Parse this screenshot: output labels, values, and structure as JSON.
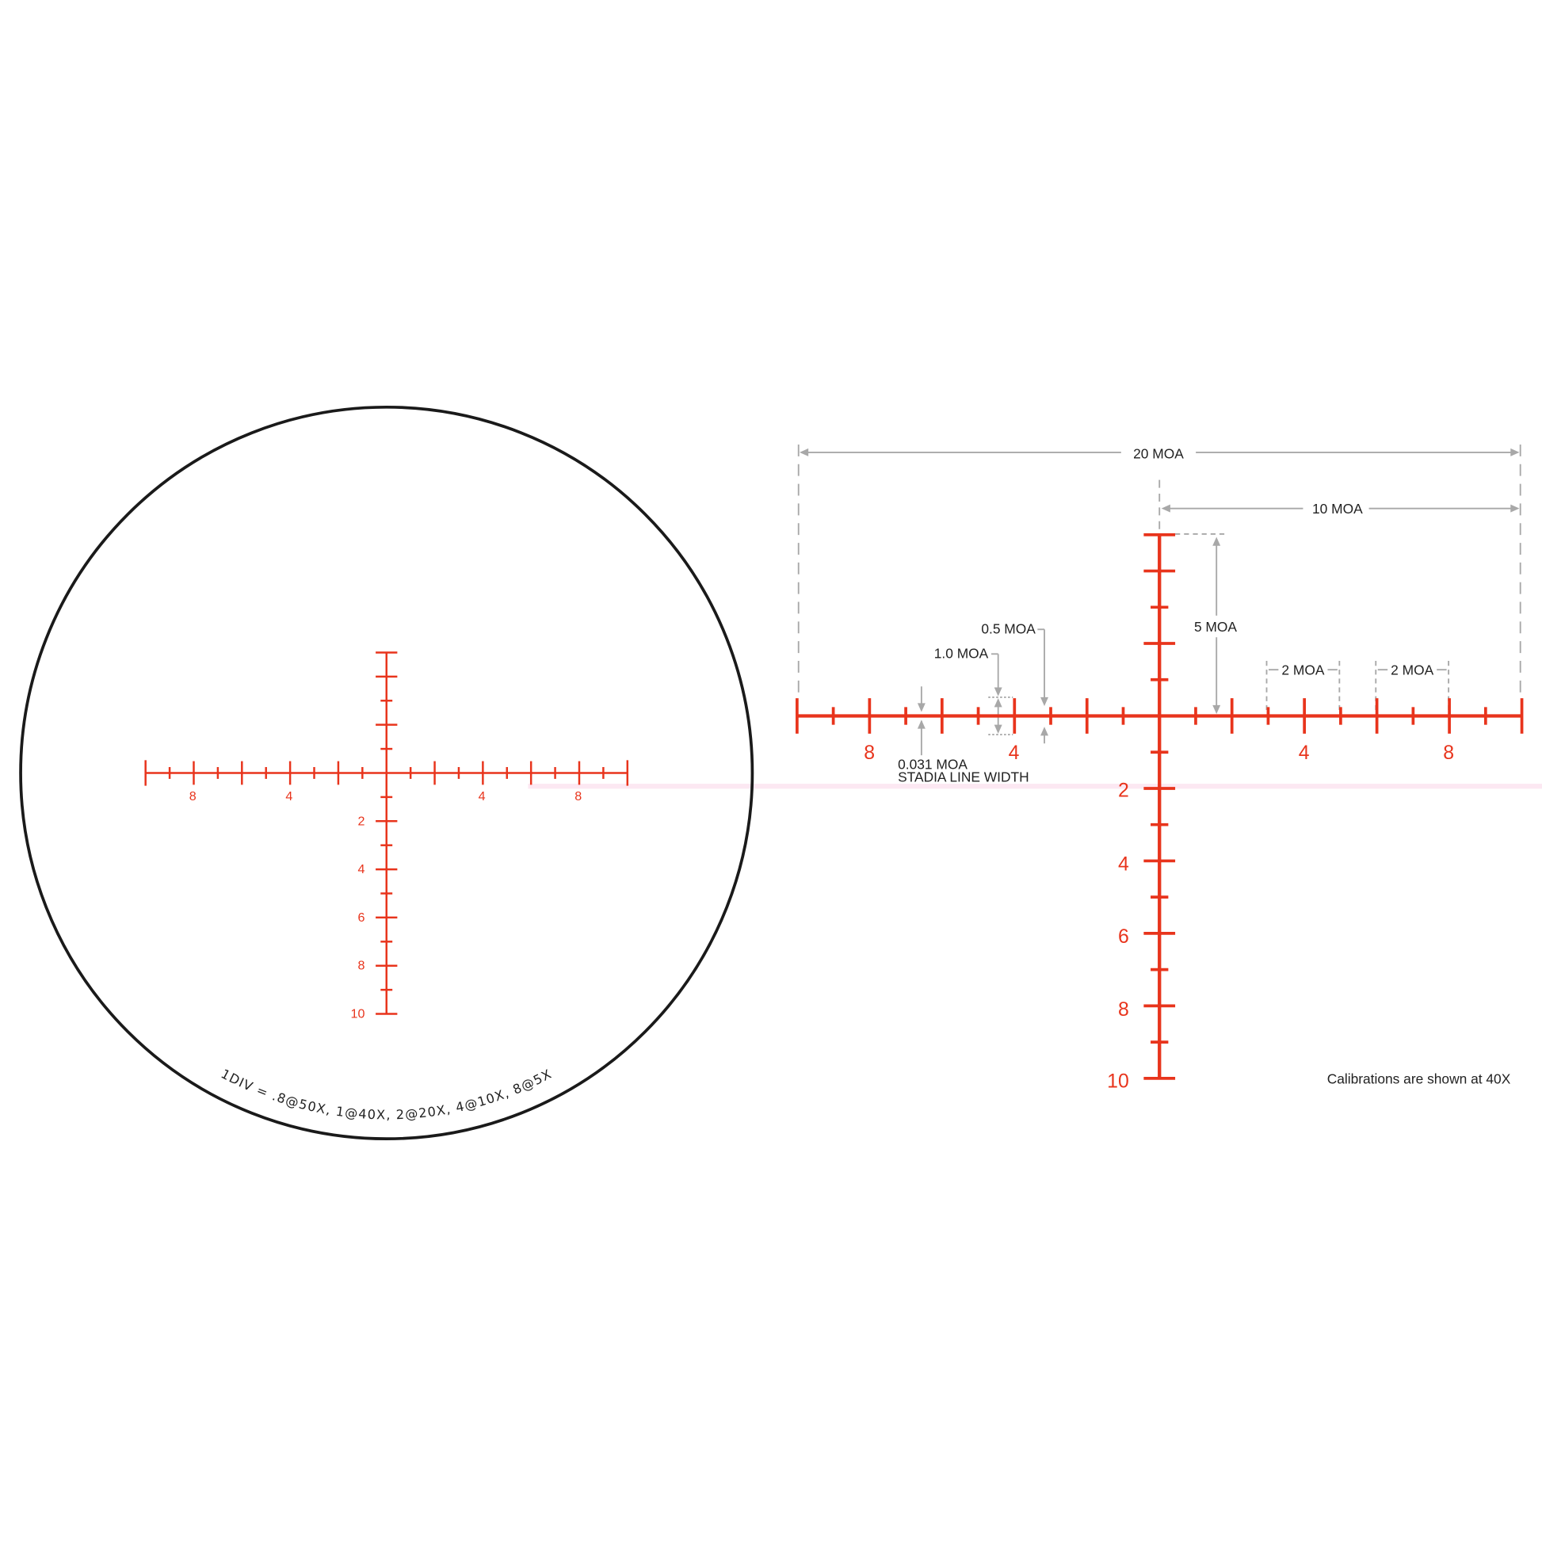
{
  "colors": {
    "reticle": "#e8341c",
    "annotation": "#a8a8a8",
    "outline": "#1a1a1a",
    "band": "#fce8f2"
  },
  "left_view": {
    "h_labels": [
      "8",
      "4",
      "4",
      "8"
    ],
    "v_labels": [
      "2",
      "4",
      "6",
      "8",
      "10"
    ],
    "div_caption": "1DIV = .8@50X, 1@40X, 2@20X, 4@10X, 8@5X"
  },
  "right_view": {
    "h_labels": [
      "8",
      "4",
      "4",
      "8"
    ],
    "v_labels": [
      "2",
      "4",
      "6",
      "8",
      "10"
    ],
    "annotations": {
      "moa20": "20 MOA",
      "moa10": "10 MOA",
      "moa5": "5 MOA",
      "moa05": "0.5 MOA",
      "moa10b": "1.0 MOA",
      "moa2a": "2 MOA",
      "moa2b": "2 MOA",
      "stadia1": "0.031 MOA",
      "stadia2": "STADIA LINE WIDTH"
    },
    "note": "Calibrations are shown at 40X"
  }
}
